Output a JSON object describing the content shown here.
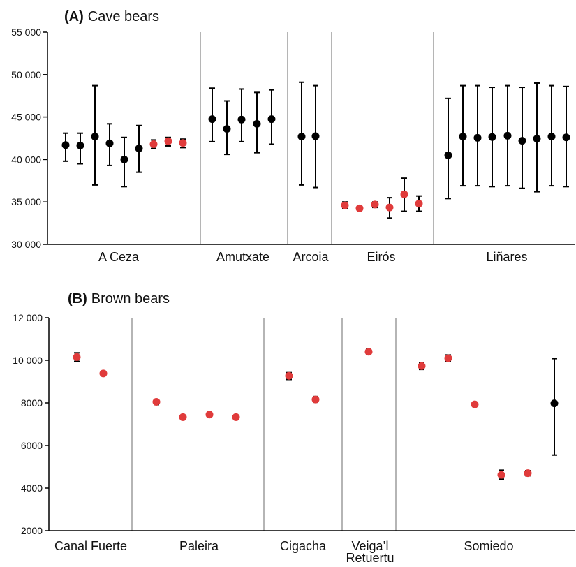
{
  "colors": {
    "black_point": "#000000",
    "red_point": "#e03b3b",
    "divider": "#b5b5b5",
    "axis": "#000000"
  },
  "chart_data": [
    {
      "type": "scatter",
      "panel_letter": "(A)",
      "title": "Cave bears",
      "xlabel": "",
      "ylabel": "",
      "ylim": [
        30000,
        55000
      ],
      "yticks": [
        "30 000",
        "35 000",
        "40 000",
        "45 000",
        "50 000",
        "55 000"
      ],
      "ytick_values": [
        30000,
        35000,
        40000,
        45000,
        50000,
        55000
      ],
      "grid": false,
      "groups": [
        {
          "label": "A Ceza",
          "points": [
            {
              "value": 41700,
              "err_low": 39800,
              "err_high": 43100,
              "color": "black"
            },
            {
              "value": 41650,
              "err_low": 39500,
              "err_high": 43100,
              "color": "black"
            },
            {
              "value": 42700,
              "err_low": 37000,
              "err_high": 48700,
              "color": "black"
            },
            {
              "value": 41900,
              "err_low": 39300,
              "err_high": 44200,
              "color": "black"
            },
            {
              "value": 40000,
              "err_low": 36800,
              "err_high": 42600,
              "color": "black"
            },
            {
              "value": 41300,
              "err_low": 38500,
              "err_high": 44000,
              "color": "black"
            },
            {
              "value": 41800,
              "err_low": 41300,
              "err_high": 42300,
              "color": "red"
            },
            {
              "value": 42150,
              "err_low": 41600,
              "err_high": 42600,
              "color": "red"
            },
            {
              "value": 41950,
              "err_low": 41400,
              "err_high": 42400,
              "color": "red"
            }
          ]
        },
        {
          "label": "Amutxate",
          "points": [
            {
              "value": 44750,
              "err_low": 42100,
              "err_high": 48400,
              "color": "black"
            },
            {
              "value": 43600,
              "err_low": 40600,
              "err_high": 46900,
              "color": "black"
            },
            {
              "value": 44700,
              "err_low": 42100,
              "err_high": 48300,
              "color": "black"
            },
            {
              "value": 44200,
              "err_low": 40800,
              "err_high": 47900,
              "color": "black"
            },
            {
              "value": 44750,
              "err_low": 41800,
              "err_high": 48200,
              "color": "black"
            }
          ]
        },
        {
          "label": "Arcoia",
          "points": [
            {
              "value": 42700,
              "err_low": 37000,
              "err_high": 49100,
              "color": "black"
            },
            {
              "value": 42750,
              "err_low": 36700,
              "err_high": 48700,
              "color": "black"
            }
          ]
        },
        {
          "label": "Eirós",
          "points": [
            {
              "value": 34600,
              "err_low": 34200,
              "err_high": 35000,
              "color": "red"
            },
            {
              "value": 34250,
              "err_low": 34000,
              "err_high": 34550,
              "color": "red"
            },
            {
              "value": 34700,
              "err_low": 34350,
              "err_high": 35000,
              "color": "red"
            },
            {
              "value": 34350,
              "err_low": 33100,
              "err_high": 35500,
              "color": "red"
            },
            {
              "value": 35900,
              "err_low": 33900,
              "err_high": 37800,
              "color": "red"
            },
            {
              "value": 34800,
              "err_low": 33900,
              "err_high": 35700,
              "color": "red"
            }
          ]
        },
        {
          "label": "Liñares",
          "points": [
            {
              "value": 40500,
              "err_low": 35400,
              "err_high": 47200,
              "color": "black"
            },
            {
              "value": 42700,
              "err_low": 36900,
              "err_high": 48700,
              "color": "black"
            },
            {
              "value": 42550,
              "err_low": 36900,
              "err_high": 48700,
              "color": "black"
            },
            {
              "value": 42650,
              "err_low": 36800,
              "err_high": 48500,
              "color": "black"
            },
            {
              "value": 42800,
              "err_low": 36900,
              "err_high": 48700,
              "color": "black"
            },
            {
              "value": 42200,
              "err_low": 36600,
              "err_high": 48500,
              "color": "black"
            },
            {
              "value": 42450,
              "err_low": 36200,
              "err_high": 49000,
              "color": "black"
            },
            {
              "value": 42700,
              "err_low": 36900,
              "err_high": 48700,
              "color": "black"
            },
            {
              "value": 42600,
              "err_low": 36800,
              "err_high": 48600,
              "color": "black"
            }
          ]
        }
      ]
    },
    {
      "type": "scatter",
      "panel_letter": "(B)",
      "title": "Brown bears",
      "xlabel": "",
      "ylabel": "",
      "ylim": [
        2000,
        12000
      ],
      "yticks": [
        "2000",
        "4000",
        "6000",
        "8000",
        "10 000",
        "12 000"
      ],
      "ytick_values": [
        2000,
        4000,
        6000,
        8000,
        10000,
        12000
      ],
      "grid": false,
      "groups": [
        {
          "label": "Canal Fuerte",
          "points": [
            {
              "value": 10150,
              "err_low": 9950,
              "err_high": 10350,
              "color": "red"
            },
            {
              "value": 9380,
              "err_low": 9280,
              "err_high": 9480,
              "color": "red"
            }
          ]
        },
        {
          "label": "Paleira",
          "points": [
            {
              "value": 8050,
              "err_low": 7920,
              "err_high": 8150,
              "color": "red"
            },
            {
              "value": 7330,
              "err_low": 7240,
              "err_high": 7420,
              "color": "red"
            },
            {
              "value": 7450,
              "err_low": 7340,
              "err_high": 7560,
              "color": "red"
            },
            {
              "value": 7330,
              "err_low": 7240,
              "err_high": 7420,
              "color": "red"
            }
          ]
        },
        {
          "label": "Cigacha",
          "points": [
            {
              "value": 9270,
              "err_low": 9100,
              "err_high": 9420,
              "color": "red"
            },
            {
              "value": 8160,
              "err_low": 8030,
              "err_high": 8300,
              "color": "red"
            }
          ]
        },
        {
          "label": "Veiga’l\nRetuertu",
          "points": [
            {
              "value": 10400,
              "err_low": 10280,
              "err_high": 10520,
              "color": "red"
            }
          ]
        },
        {
          "label": "Somiedo",
          "points": [
            {
              "value": 9730,
              "err_low": 9570,
              "err_high": 9880,
              "color": "red"
            },
            {
              "value": 10100,
              "err_low": 9950,
              "err_high": 10250,
              "color": "red"
            },
            {
              "value": 7930,
              "err_low": 7850,
              "err_high": 8010,
              "color": "red"
            },
            {
              "value": 4620,
              "err_low": 4420,
              "err_high": 4840,
              "color": "red"
            },
            {
              "value": 4700,
              "err_low": 4580,
              "err_high": 4820,
              "color": "red"
            },
            {
              "value": 7980,
              "err_low": 5550,
              "err_high": 10080,
              "color": "black"
            }
          ]
        }
      ]
    }
  ]
}
